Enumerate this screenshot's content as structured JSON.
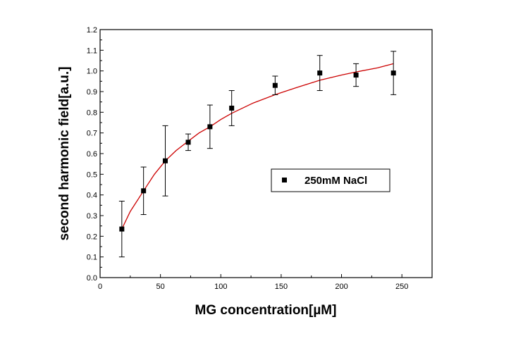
{
  "chart_data": {
    "type": "scatter",
    "title": "",
    "xlabel": "MG concentration[µM]",
    "ylabel": "second harmonic field[a.u.]",
    "xlim": [
      0,
      275
    ],
    "ylim": [
      0.0,
      1.2
    ],
    "x_ticks": [
      "0",
      "50",
      "100",
      "150",
      "200",
      "250"
    ],
    "y_ticks": [
      "0.0",
      "0.1",
      "0.2",
      "0.3",
      "0.4",
      "0.5",
      "0.6",
      "0.7",
      "0.8",
      "0.9",
      "1.0",
      "1.1",
      "1.2"
    ],
    "grid": false,
    "legend_position": "center-right",
    "series": [
      {
        "name": "250mM NaCl",
        "marker": "square",
        "color": "#000000",
        "points": [
          {
            "x": 18,
            "y": 0.235,
            "err": 0.135
          },
          {
            "x": 36,
            "y": 0.42,
            "err": 0.115
          },
          {
            "x": 54,
            "y": 0.565,
            "err": 0.17
          },
          {
            "x": 73,
            "y": 0.655,
            "err": 0.04
          },
          {
            "x": 91,
            "y": 0.73,
            "err": 0.105
          },
          {
            "x": 109,
            "y": 0.82,
            "err": 0.085
          },
          {
            "x": 145,
            "y": 0.93,
            "err": 0.045
          },
          {
            "x": 182,
            "y": 0.99,
            "err": 0.085
          },
          {
            "x": 212,
            "y": 0.98,
            "err": 0.055
          },
          {
            "x": 243,
            "y": 0.99,
            "err": 0.105
          }
        ]
      }
    ],
    "fit_curve": {
      "color": "#cc0000",
      "points": [
        [
          18,
          0.235
        ],
        [
          25,
          0.32
        ],
        [
          36,
          0.42
        ],
        [
          45,
          0.5
        ],
        [
          54,
          0.565
        ],
        [
          63,
          0.615
        ],
        [
          73,
          0.66
        ],
        [
          82,
          0.7
        ],
        [
          91,
          0.73
        ],
        [
          100,
          0.765
        ],
        [
          109,
          0.795
        ],
        [
          127,
          0.845
        ],
        [
          145,
          0.885
        ],
        [
          163,
          0.92
        ],
        [
          182,
          0.955
        ],
        [
          200,
          0.98
        ],
        [
          212,
          0.995
        ],
        [
          230,
          1.015
        ],
        [
          243,
          1.035
        ]
      ]
    }
  }
}
